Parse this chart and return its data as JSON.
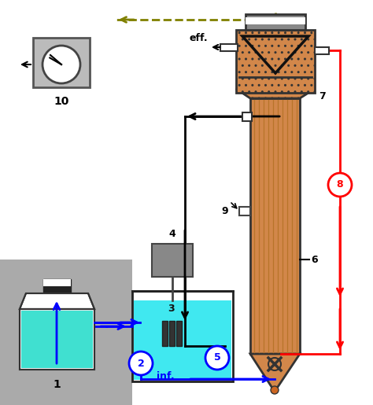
{
  "bg_color": "#ffffff",
  "gray_bg": "#aaaaaa",
  "feed_bottle_color": "#40e0d0",
  "water_bath_color": "#40e8f0",
  "reactor_body_color": "#d2874a",
  "settler_color": "#d2874a",
  "blue_line": "#0000ff",
  "red_line": "#ff0000",
  "dashed_line": "#808000",
  "label_eff": "eff.",
  "label_inf": "inf.",
  "label_10": "10",
  "labels": [
    "1",
    "2",
    "3",
    "4",
    "5",
    "6",
    "7",
    "8",
    "9",
    "10"
  ]
}
